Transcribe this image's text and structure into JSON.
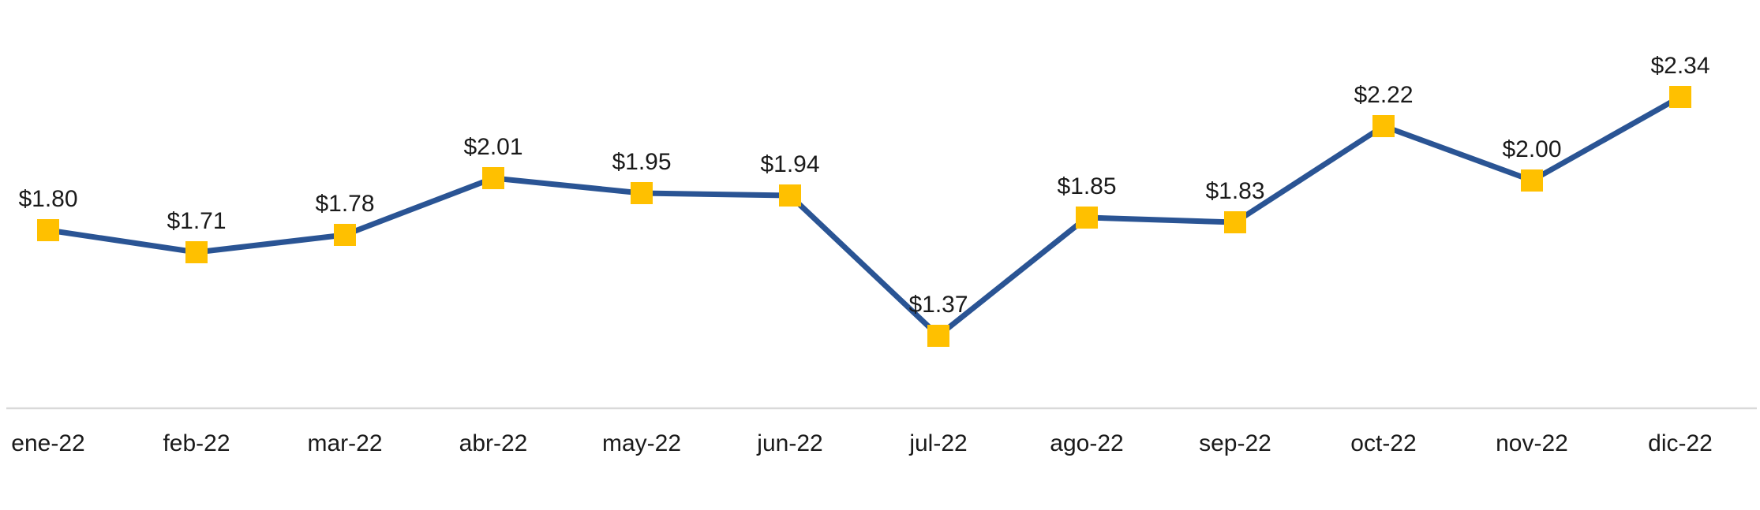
{
  "chart_data": {
    "type": "line",
    "categories": [
      "ene-22",
      "feb-22",
      "mar-22",
      "abr-22",
      "may-22",
      "jun-22",
      "jul-22",
      "ago-22",
      "sep-22",
      "oct-22",
      "nov-22",
      "dic-22"
    ],
    "values": [
      1.8,
      1.71,
      1.78,
      2.01,
      1.95,
      1.94,
      1.37,
      1.85,
      1.83,
      2.22,
      2.0,
      2.34
    ],
    "data_labels": [
      "$1.80",
      "$1.71",
      "$1.78",
      "$2.01",
      "$1.95",
      "$1.94",
      "$1.37",
      "$1.85",
      "$1.83",
      "$2.22",
      "$2.00",
      "$2.34"
    ],
    "title": "",
    "xlabel": "",
    "ylabel": "",
    "legend": "none",
    "grid": false,
    "y_axis_visible": false,
    "x_axis_line_visible": true,
    "marker_shape": "square",
    "colors": {
      "line": "#2A5494",
      "marker": "#FFC000",
      "axis_line": "#D9D9D9",
      "label_text": "#1A1A1A"
    }
  }
}
